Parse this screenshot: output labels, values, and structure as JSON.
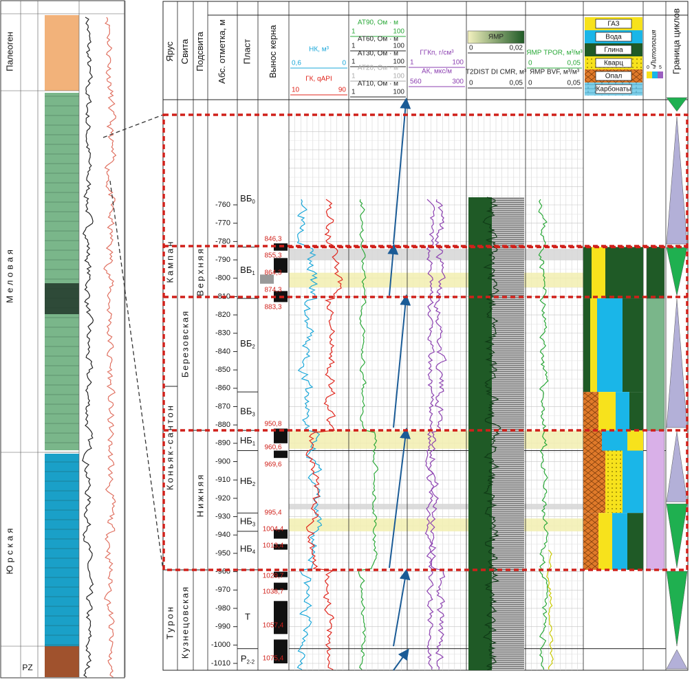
{
  "left_panel": {
    "labels": [
      "Палеоген",
      "Меловая",
      "Юрская",
      "PZ"
    ]
  },
  "headers": {
    "stage": "Ярус",
    "formation": "Свита",
    "subformation": "Подсвита",
    "depth": "Абс. отметка, м",
    "layer": "Пласт",
    "core": "Вынос керна",
    "lithology": "Литология",
    "cycles": "Граница циклов"
  },
  "track_headers": [
    {
      "name": "НК, м³",
      "color": "#1aa7d9",
      "left": "0,6",
      "right": "0"
    },
    {
      "name": "ГК, qAPI",
      "color": "#e0241b",
      "left": "10",
      "right": "90"
    },
    {
      "name": "AT90, Ом · м",
      "color": "#2aa838",
      "left": "1",
      "right": "100"
    },
    {
      "name": "AT60, Ом · м",
      "color": "#222222",
      "left": "1",
      "right": "100"
    },
    {
      "name": "AT30, Ом · м",
      "color": "#222222",
      "left": "1",
      "right": "100"
    },
    {
      "name": "AT20, Ом · м",
      "color": "#aaaaaa",
      "left": "1",
      "right": "100"
    },
    {
      "name": "AT10, Ом · м",
      "color": "#222222",
      "left": "1",
      "right": "100"
    },
    {
      "name": "ГГКп, г/см³",
      "color": "#8b3fb0",
      "left": "1",
      "right": "100"
    },
    {
      "name": "АК, мкс/м",
      "color": "#8b3fb0",
      "left": "560",
      "right": "300"
    },
    {
      "name": "ЯМР",
      "color": "#222222",
      "left": "0",
      "right": "0,02"
    },
    {
      "name": "T2DIST DI CMR, м³",
      "color": "#222222",
      "left": "0",
      "right": "0,05"
    },
    {
      "name": "ЯМР TPOR, м³/м³",
      "color": "#2aa838",
      "left": "0",
      "right": "0,05"
    },
    {
      "name": "ЯМР BVF, м³/м³",
      "color": "#222222",
      "left": "0",
      "right": "0,05"
    }
  ],
  "legend": [
    "ГАЗ",
    "Вода",
    "Глина",
    "Кварц",
    "Опал",
    "Карбонаты"
  ],
  "lithology_scale": [
    "0",
    "3",
    "5"
  ],
  "depth_ticks": [
    -760,
    -770,
    -780,
    -790,
    -800,
    -810,
    -820,
    -830,
    -840,
    -850,
    -860,
    -870,
    -880,
    -890,
    -900,
    -910,
    -920,
    -930,
    -940,
    -950,
    -960,
    -970,
    -980,
    -990,
    -1000,
    -1010
  ],
  "stages": [
    "Кампан",
    "Коньяк-сантон",
    "Турон"
  ],
  "formations": [
    "Березовская",
    "Кузнецовская"
  ],
  "subformations": [
    "Верхняя",
    "Нижняя"
  ],
  "layers": [
    {
      "name": "ВБ",
      "sub": "0"
    },
    {
      "name": "ВБ",
      "sub": "1"
    },
    {
      "name": "ВБ",
      "sub": "2"
    },
    {
      "name": "ВБ",
      "sub": "3"
    },
    {
      "name": "НБ",
      "sub": "1"
    },
    {
      "name": "НБ",
      "sub": "2"
    },
    {
      "name": "НБ",
      "sub": "3"
    },
    {
      "name": "НБ",
      "sub": "4"
    },
    {
      "name": "Т",
      "sub": ""
    },
    {
      "name": "P",
      "sub": "2-2"
    }
  ],
  "core_depths": [
    "846,3",
    "855,3",
    "864,3",
    "874,3",
    "883,3",
    "950,8",
    "960,6",
    "969,6",
    "995,4",
    "1004,4",
    "1013,4",
    "1029,7",
    "1038,7",
    "1057,4",
    "1075,4"
  ]
}
